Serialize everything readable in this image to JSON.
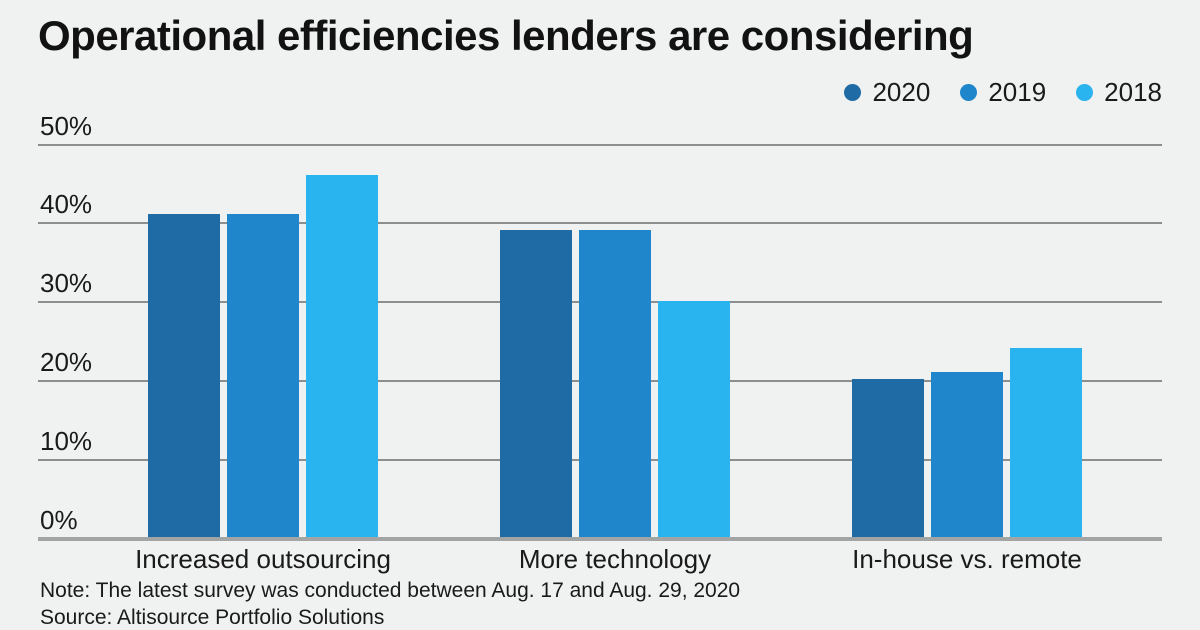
{
  "title": "Operational efficiencies lenders are considering",
  "note": "Note: The latest survey was conducted between Aug. 17 and Aug. 29, 2020",
  "source": "Source: Altisource Portfolio Solutions",
  "colors": {
    "background": "#f0f1f1",
    "series_2020": "#1f6ba5",
    "series_2019": "#1f86cc",
    "series_2018": "#29b3ef",
    "gridline": "#8d8f8e",
    "axis": "#a3a5a5",
    "text": "#1a1a1a"
  },
  "legend": [
    {
      "label": "2020",
      "color": "#1f6ba5"
    },
    {
      "label": "2019",
      "color": "#1f86cc"
    },
    {
      "label": "2018",
      "color": "#29b3ef"
    }
  ],
  "chart_data": {
    "type": "bar",
    "title": "Operational efficiencies lenders are considering",
    "categories": [
      "Increased outsourcing",
      "More technology",
      "In-house vs. remote"
    ],
    "series": [
      {
        "name": "2020",
        "color": "#1f6ba5",
        "values": [
          41,
          39,
          20
        ]
      },
      {
        "name": "2019",
        "color": "#1f86cc",
        "values": [
          41,
          39,
          21
        ]
      },
      {
        "name": "2018",
        "color": "#29b3ef",
        "values": [
          46,
          30,
          24
        ]
      }
    ],
    "xlabel": "",
    "ylabel": "",
    "ylim": [
      0,
      50
    ],
    "y_ticks": [
      "50%",
      "40%",
      "30%",
      "20%",
      "10%",
      "0%"
    ],
    "y_tick_values": [
      50,
      40,
      30,
      20,
      10,
      0
    ],
    "grid": true,
    "legend_position": "top-right",
    "note": "Note: The latest survey was conducted between Aug. 17 and Aug. 29, 2020",
    "source": "Source: Altisource Portfolio Solutions"
  }
}
